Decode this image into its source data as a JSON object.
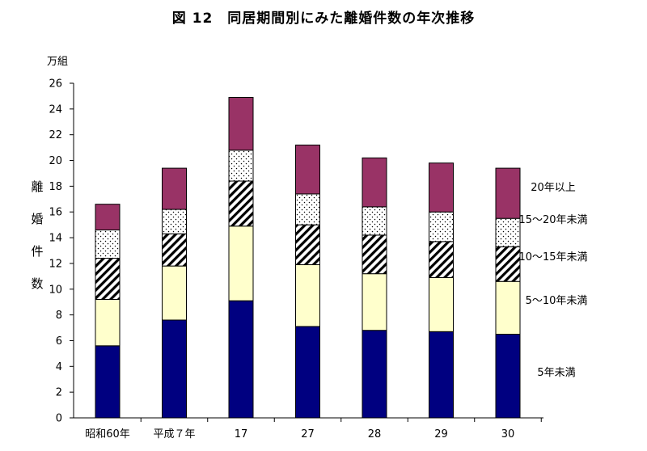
{
  "chart_data": {
    "type": "bar",
    "stacked": true,
    "title": "図 12　同居期間別にみた離婚件数の年次推移",
    "ylabel": "離婚件数",
    "unit": "万組",
    "ylim": [
      0,
      26
    ],
    "yticks": [
      0,
      2,
      4,
      6,
      8,
      10,
      12,
      14,
      16,
      18,
      20,
      22,
      24,
      26
    ],
    "grid": false,
    "legend": "right",
    "categories": [
      "昭和60年",
      "平成７年",
      "17",
      "27",
      "28",
      "29",
      "30"
    ],
    "series": [
      {
        "name": "5年未満",
        "color": "#000080",
        "pattern": "solid",
        "values": [
          5.6,
          7.6,
          9.1,
          7.1,
          6.8,
          6.7,
          6.5
        ]
      },
      {
        "name": "5～10年未満",
        "color": "#ffffcc",
        "pattern": "solid",
        "values": [
          3.6,
          4.2,
          5.8,
          4.8,
          4.4,
          4.2,
          4.1
        ]
      },
      {
        "name": "10～15年未満",
        "color": "#ffffff",
        "pattern": "diagonal-hatch",
        "values": [
          3.2,
          2.5,
          3.5,
          3.1,
          3.0,
          2.8,
          2.7
        ]
      },
      {
        "name": "15～20年未満",
        "color": "#ffffff",
        "pattern": "dots",
        "values": [
          2.2,
          1.9,
          2.4,
          2.4,
          2.2,
          2.3,
          2.2
        ]
      },
      {
        "name": "20年以上",
        "color": "#993366",
        "pattern": "solid",
        "values": [
          2.0,
          3.2,
          4.1,
          3.8,
          3.8,
          3.8,
          3.9
        ]
      }
    ]
  }
}
